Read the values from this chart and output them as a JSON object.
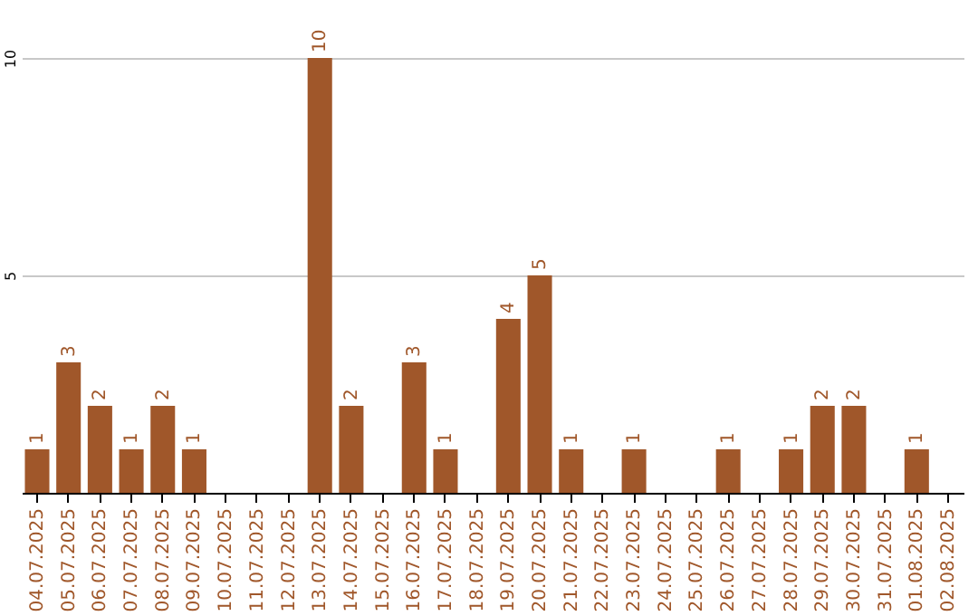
{
  "chart_data": {
    "type": "bar",
    "categories": [
      "04.07.2025",
      "05.07.2025",
      "06.07.2025",
      "07.07.2025",
      "08.07.2025",
      "09.07.2025",
      "10.07.2025",
      "11.07.2025",
      "12.07.2025",
      "13.07.2025",
      "14.07.2025",
      "15.07.2025",
      "16.07.2025",
      "17.07.2025",
      "18.07.2025",
      "19.07.2025",
      "20.07.2025",
      "21.07.2025",
      "22.07.2025",
      "23.07.2025",
      "24.07.2025",
      "25.07.2025",
      "26.07.2025",
      "27.07.2025",
      "28.07.2025",
      "29.07.2025",
      "30.07.2025",
      "31.07.2025",
      "01.08.2025",
      "02.08.2025"
    ],
    "values": [
      1,
      3,
      2,
      1,
      2,
      1,
      0,
      0,
      0,
      10,
      2,
      0,
      3,
      1,
      0,
      4,
      5,
      1,
      0,
      1,
      0,
      0,
      1,
      0,
      1,
      2,
      2,
      0,
      1,
      0
    ],
    "value_labels": [
      "1",
      "3",
      "2",
      "1",
      "2",
      "1",
      null,
      null,
      null,
      "10",
      "2",
      null,
      "3",
      "1",
      null,
      "4",
      "5",
      "1",
      null,
      "1",
      null,
      null,
      "1",
      null,
      "1",
      "2",
      "2",
      null,
      "1",
      null
    ],
    "color": "#a0572a",
    "ylim": [
      0,
      10
    ],
    "yticks": [
      {
        "value": 0,
        "label": null
      },
      5,
      10
    ],
    "grid": true
  }
}
